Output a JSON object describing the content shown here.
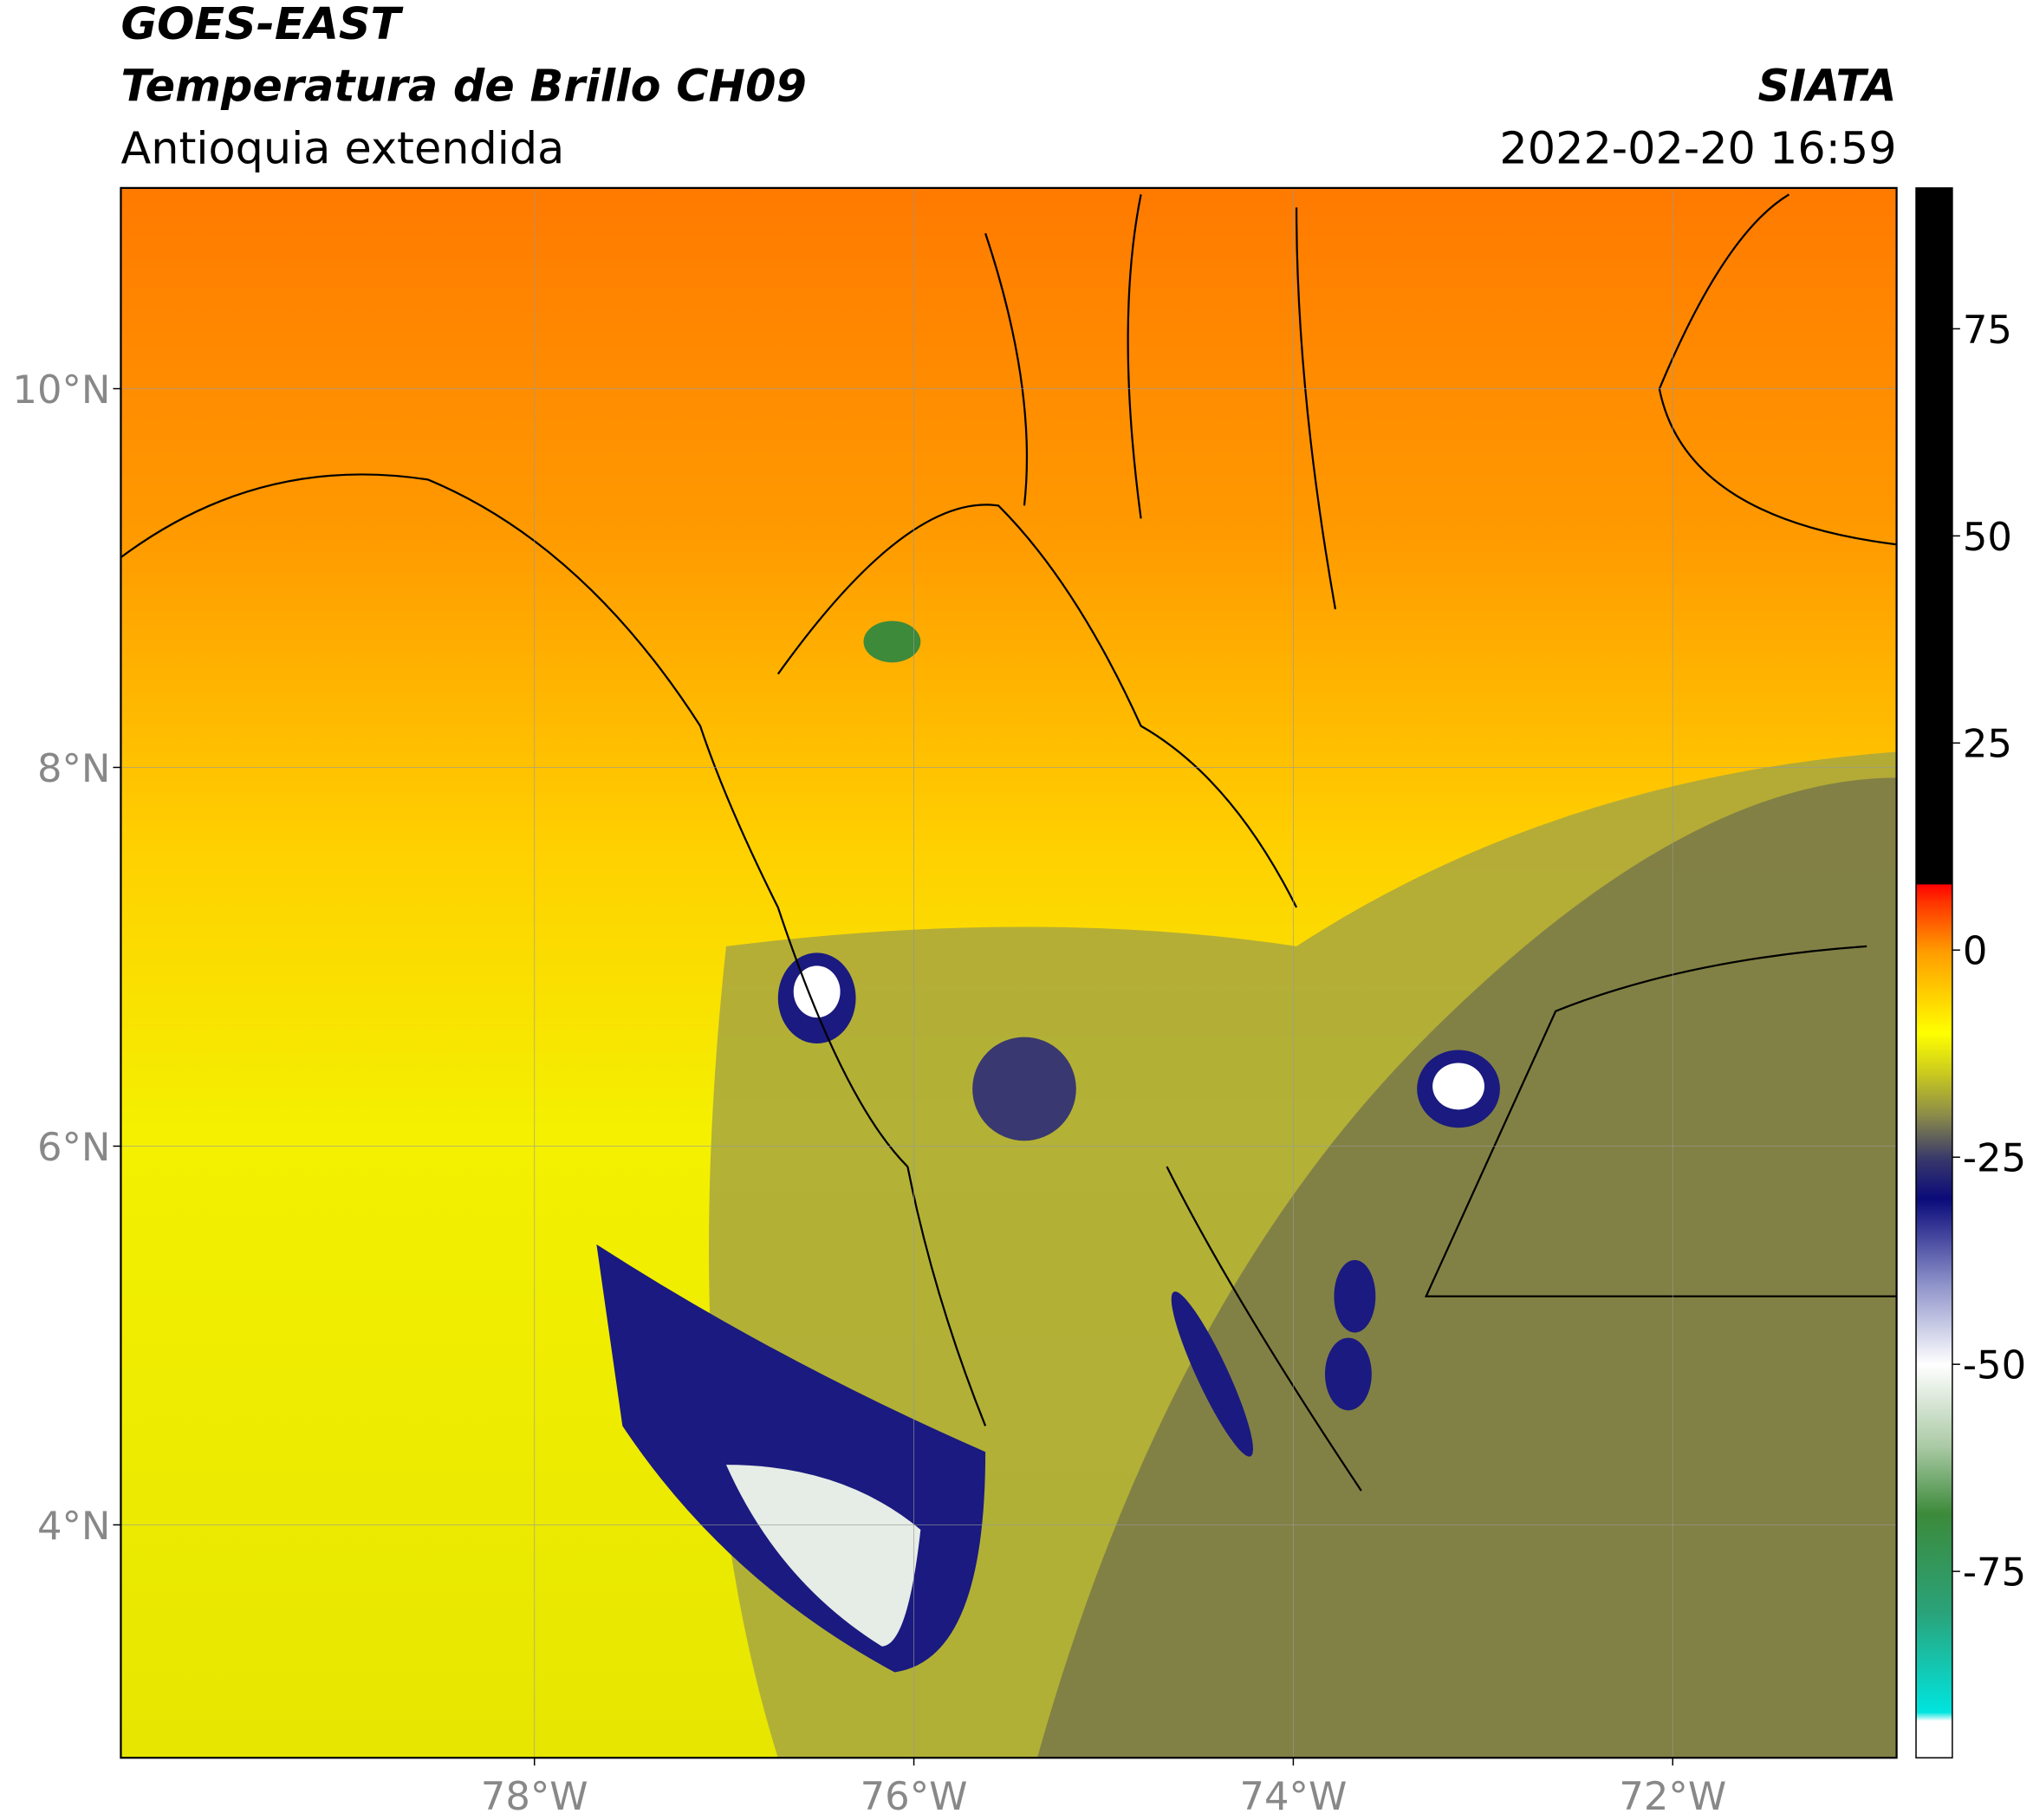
{
  "header": {
    "title": "GOES-EAST",
    "subtitle": "Temperatura de Brillo CH09",
    "region": "Antioquia extendida",
    "source": "SIATA",
    "datetime": "2022-02-20 16:59"
  },
  "map": {
    "xlim": [
      -80.18,
      -70.82
    ],
    "ylim": [
      2.77,
      11.06
    ],
    "xticks": [
      {
        "value": -78,
        "label": "78°W"
      },
      {
        "value": -76,
        "label": "76°W"
      },
      {
        "value": -74,
        "label": "74°W"
      },
      {
        "value": -72,
        "label": "72°W"
      }
    ],
    "yticks": [
      {
        "value": 4,
        "label": "4°N"
      },
      {
        "value": 6,
        "label": "6°N"
      },
      {
        "value": 8,
        "label": "8°N"
      },
      {
        "value": 10,
        "label": "10°N"
      }
    ],
    "grid": true
  },
  "colorbar": {
    "range": [
      -97.5,
      92
    ],
    "ticks": [
      -75,
      -50,
      -25,
      0,
      25,
      50,
      75
    ],
    "colors": [
      {
        "value": -97.5,
        "color": "#ffffff"
      },
      {
        "value": -93,
        "color": "#ffffff"
      },
      {
        "value": -92,
        "color": "#00e5e0"
      },
      {
        "value": -80,
        "color": "#2aa37a"
      },
      {
        "value": -68,
        "color": "#3c8a3a"
      },
      {
        "value": -60,
        "color": "#a9c9a4"
      },
      {
        "value": -50,
        "color": "#ffffff"
      },
      {
        "value": -40,
        "color": "#8a8fc8"
      },
      {
        "value": -30,
        "color": "#0a0a7a"
      },
      {
        "value": -25,
        "color": "#3a3a6a"
      },
      {
        "value": -20,
        "color": "#8a8a4a"
      },
      {
        "value": -15,
        "color": "#c8c820"
      },
      {
        "value": -10,
        "color": "#ffff00"
      },
      {
        "value": 0,
        "color": "#ff9a00"
      },
      {
        "value": 6,
        "color": "#ff3000"
      },
      {
        "value": 8,
        "color": "#ff0000"
      },
      {
        "value": 8.01,
        "color": "#000000"
      },
      {
        "value": 92,
        "color": "#000000"
      }
    ]
  }
}
